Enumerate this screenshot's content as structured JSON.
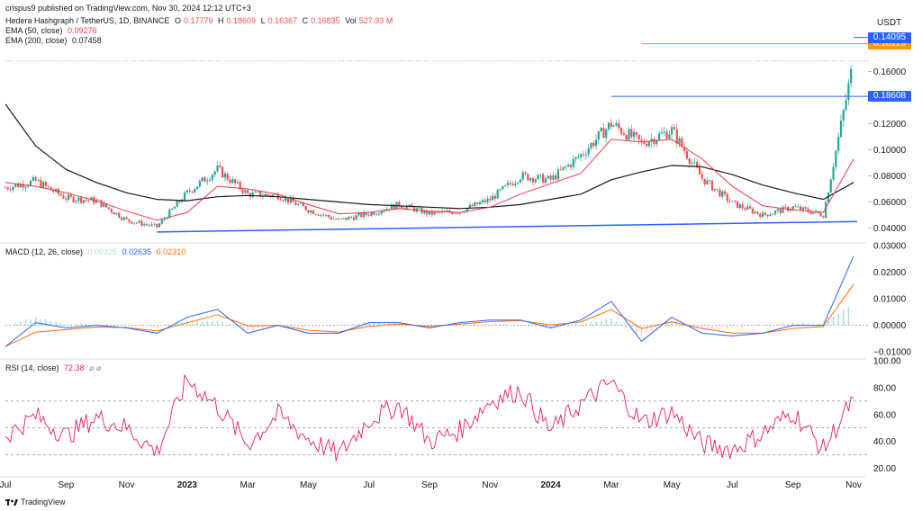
{
  "header": {
    "publisher": "crispus9 published on TradingView.com, Nov 30, 2024 12:12 UTC+3",
    "symbol": "Hedera Hashgraph / TetherUS, 1D, BINANCE",
    "ohlc": {
      "o_label": "O",
      "o": "0.17779",
      "h_label": "H",
      "h": "0.18609",
      "l_label": "L",
      "l": "0.16367",
      "c_label": "C",
      "c": "0.16835",
      "vol_label": "Vol",
      "vol": "527.93 M"
    },
    "ema50": {
      "label": "EMA (50, close)",
      "value": "0.09276"
    },
    "ema200": {
      "label": "EMA (200, close)",
      "value": "0.07458"
    }
  },
  "price_pane": {
    "currency": "USDT",
    "tick_labels": [
      "0.04000",
      "0.06000",
      "0.08000",
      "0.10000",
      "0.12000",
      "0.14000",
      "0.16000"
    ],
    "price_tags": [
      {
        "value": "0.18608",
        "color": "#2962ff"
      },
      {
        "value": "0.18129",
        "color": "#ff9800"
      },
      {
        "value": "0.14095",
        "color": "#2962ff"
      }
    ]
  },
  "macd_pane": {
    "label": "MACD (12, 26, close)",
    "values": [
      "0.00325",
      "0.02635",
      "0.02310"
    ],
    "tick_labels": [
      "0.03000",
      "0.02000",
      "0.01000",
      "0.00000",
      "−0.01000"
    ]
  },
  "rsi_pane": {
    "label": "RSI (14, close)",
    "value": "72.38",
    "extra": "⌀ ⌀",
    "tick_labels": [
      "100.00",
      "80.00",
      "60.00",
      "40.00",
      "20.00"
    ]
  },
  "x_axis": {
    "labels": [
      "Jul",
      "Sep",
      "Nov",
      "2023",
      "Mar",
      "May",
      "Jul",
      "Sep",
      "Nov",
      "2024",
      "Mar",
      "May",
      "Jul",
      "Sep",
      "Nov"
    ],
    "bold": [
      "2023",
      "2024"
    ]
  },
  "footer": {
    "brand": "TradingView"
  },
  "colors": {
    "up": "#26a69a",
    "down": "#ef5350",
    "ema50": "#f23645",
    "ema200": "#131722",
    "trend": "#2962ff",
    "orange": "#ff9800",
    "macd": "#2962ff",
    "signal": "#ff6d00",
    "rsi": "#e91e63"
  },
  "chart_data": {
    "type": "line",
    "price_close_by_month": {
      "x": [
        "2022-07",
        "2022-08",
        "2022-09",
        "2022-10",
        "2022-11",
        "2022-12",
        "2023-01",
        "2023-02",
        "2023-03",
        "2023-04",
        "2023-05",
        "2023-06",
        "2023-07",
        "2023-08",
        "2023-09",
        "2023-10",
        "2023-11",
        "2023-12",
        "2024-01",
        "2024-02",
        "2024-03",
        "2024-04",
        "2024-05",
        "2024-06",
        "2024-07",
        "2024-08",
        "2024-09",
        "2024-10",
        "2024-11"
      ],
      "y": [
        0.071,
        0.076,
        0.063,
        0.061,
        0.046,
        0.041,
        0.067,
        0.085,
        0.066,
        0.065,
        0.054,
        0.046,
        0.051,
        0.058,
        0.051,
        0.053,
        0.062,
        0.08,
        0.077,
        0.096,
        0.12,
        0.105,
        0.115,
        0.078,
        0.059,
        0.05,
        0.056,
        0.05,
        0.168
      ]
    },
    "ema50_by_month": [
      0.075,
      0.072,
      0.067,
      0.061,
      0.053,
      0.046,
      0.052,
      0.072,
      0.07,
      0.066,
      0.058,
      0.051,
      0.052,
      0.055,
      0.053,
      0.052,
      0.056,
      0.066,
      0.074,
      0.082,
      0.108,
      0.106,
      0.108,
      0.093,
      0.072,
      0.057,
      0.054,
      0.052,
      0.093
    ],
    "ema200_by_month": [
      0.135,
      0.103,
      0.085,
      0.075,
      0.067,
      0.062,
      0.061,
      0.064,
      0.065,
      0.064,
      0.062,
      0.06,
      0.058,
      0.057,
      0.056,
      0.055,
      0.056,
      0.058,
      0.062,
      0.066,
      0.077,
      0.083,
      0.088,
      0.087,
      0.081,
      0.073,
      0.067,
      0.062,
      0.075
    ],
    "trendline": [
      [
        "2022-12",
        0.037
      ],
      [
        "2024-11",
        0.045
      ]
    ],
    "resistance_levels": [
      {
        "value": 0.14095,
        "from": "2024-03"
      },
      {
        "value": 0.18129,
        "from": "2024-04"
      },
      {
        "value": 0.18608,
        "from": "2024-11"
      }
    ],
    "macd_by_month": [
      -0.008,
      0.001,
      -0.001,
      0.0,
      -0.001,
      -0.003,
      0.003,
      0.006,
      -0.003,
      0.0,
      -0.003,
      -0.003,
      0.001,
      0.001,
      -0.001,
      0.001,
      0.002,
      0.002,
      -0.001,
      0.002,
      0.009,
      -0.006,
      0.003,
      -0.003,
      -0.004,
      -0.003,
      0.0,
      0.0,
      0.026
    ],
    "rsi_by_month": [
      44,
      59,
      44,
      58,
      50,
      32,
      86,
      66,
      38,
      60,
      42,
      30,
      56,
      67,
      40,
      48,
      70,
      78,
      48,
      68,
      84,
      54,
      62,
      38,
      34,
      46,
      62,
      34,
      72
    ],
    "ylim_price": [
      0.03,
      0.19
    ],
    "ylim_macd": [
      -0.012,
      0.03
    ],
    "ylim_rsi": [
      15,
      100
    ],
    "rsi_levels": [
      70,
      50,
      30
    ],
    "grid": false,
    "legend": "top-left"
  }
}
